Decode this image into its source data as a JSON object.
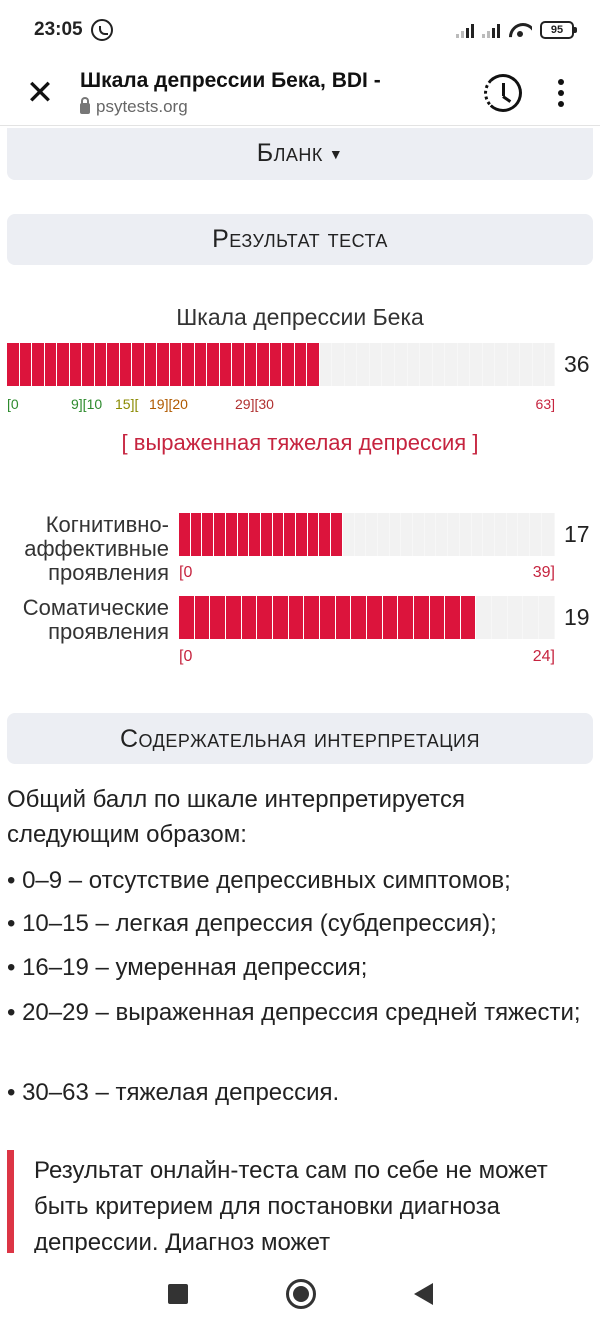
{
  "status_bar": {
    "time": "23:05",
    "battery": "95"
  },
  "browser": {
    "title": "Шкала депрессии Бека, BDI -",
    "url": "psytests.org",
    "close_glyph": "✕"
  },
  "sections": {
    "blank": "Бланк",
    "result": "Результат теста",
    "interpretation": "Содержательная интерпретация"
  },
  "main_scale": {
    "title": "Шкала депрессии Бека",
    "score": "36",
    "value": 36,
    "max": 63,
    "ticks": [
      {
        "text": "[0",
        "color": "#2e8b2e"
      },
      {
        "text": "9][10",
        "color": "#2e8b2e"
      },
      {
        "text": "15][",
        "color": "#8a8a00"
      },
      {
        "text": "19][20",
        "color": "#b05a00"
      },
      {
        "text": "29][30",
        "color": "#b03030"
      },
      {
        "text": "63]",
        "color": "#c6243f"
      }
    ],
    "verdict": "[ выраженная тяжелая депрессия ]"
  },
  "subscales": [
    {
      "label_lines": [
        "Когнитивно-",
        "аффективные",
        "проявления"
      ],
      "score": "17",
      "value": 17,
      "max": 39,
      "min_tick": "[0",
      "max_tick": "39]"
    },
    {
      "label_lines": [
        "Соматические",
        "проявления"
      ],
      "score": "19",
      "value": 19,
      "max": 24,
      "min_tick": "[0",
      "max_tick": "24]"
    }
  ],
  "interpretation": {
    "intro": "Общий балл по шкале интерпретируется следующим образом:",
    "items": [
      "• 0–9 – отсутствие депрессивных симптомов;",
      "• 10–15 – легкая депрессия (субдепрессия);",
      "• 16–19 – умеренная депрессия;",
      "• 20–29 – выраженная депрессия средней тяжести;",
      "• 30–63 – тяжелая депрессия."
    ],
    "callout": "Результат онлайн-теста сам по себе не может быть критерием для постановки диагноза депрессии. Диагноз может"
  },
  "colors": {
    "bar_fill": "#dc143c",
    "bar_empty": "#f2f2f2",
    "verdict": "#c6243f",
    "callout_border": "#dc3545"
  }
}
